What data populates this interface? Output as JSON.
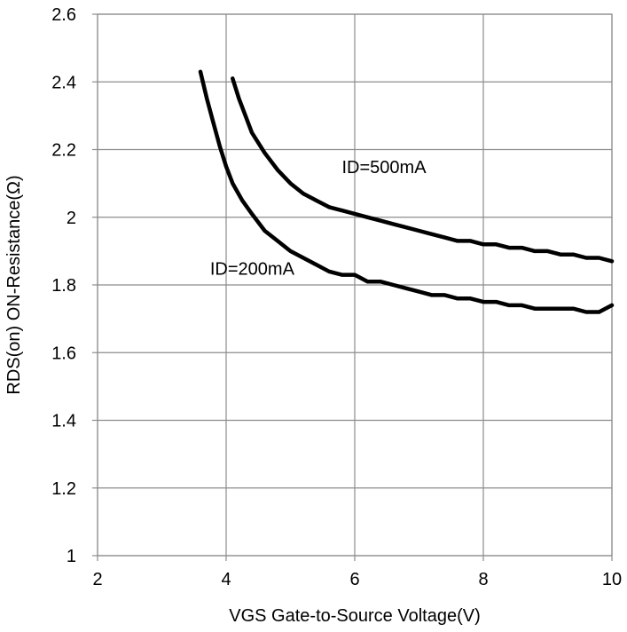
{
  "chart_data": {
    "type": "line",
    "xlabel": "VGS Gate-to-Source Voltage(V)",
    "ylabel": "RDS(on) ON-Resistance(Ω)",
    "xlim": [
      2,
      10
    ],
    "ylim": [
      1,
      2.6
    ],
    "xticks": [
      "2",
      "4",
      "6",
      "8",
      "10"
    ],
    "yticks": [
      "1",
      "1.2",
      "1.4",
      "1.6",
      "1.8",
      "2",
      "2.2",
      "2.4",
      "2.6"
    ],
    "grid": true,
    "series": [
      {
        "name": "ID=200mA",
        "x": [
          3.6,
          3.7,
          3.8,
          3.9,
          4.0,
          4.1,
          4.25,
          4.4,
          4.6,
          4.8,
          5.0,
          5.2,
          5.4,
          5.6,
          5.8,
          6.0,
          6.2,
          6.4,
          6.6,
          6.8,
          7.0,
          7.2,
          7.4,
          7.6,
          7.8,
          8.0,
          8.2,
          8.4,
          8.6,
          8.8,
          9.0,
          9.2,
          9.4,
          9.6,
          9.8,
          10.0
        ],
        "y": [
          2.43,
          2.35,
          2.28,
          2.21,
          2.15,
          2.1,
          2.05,
          2.01,
          1.96,
          1.93,
          1.9,
          1.88,
          1.86,
          1.84,
          1.83,
          1.83,
          1.81,
          1.81,
          1.8,
          1.79,
          1.78,
          1.77,
          1.77,
          1.76,
          1.76,
          1.75,
          1.75,
          1.74,
          1.74,
          1.73,
          1.73,
          1.73,
          1.73,
          1.72,
          1.72,
          1.74
        ]
      },
      {
        "name": "ID=500mA",
        "x": [
          4.1,
          4.2,
          4.3,
          4.4,
          4.6,
          4.8,
          5.0,
          5.2,
          5.4,
          5.6,
          5.8,
          6.0,
          6.2,
          6.4,
          6.6,
          6.8,
          7.0,
          7.2,
          7.4,
          7.6,
          7.8,
          8.0,
          8.2,
          8.4,
          8.6,
          8.8,
          9.0,
          9.2,
          9.4,
          9.6,
          9.8,
          10.0
        ],
        "y": [
          2.41,
          2.35,
          2.3,
          2.25,
          2.19,
          2.14,
          2.1,
          2.07,
          2.05,
          2.03,
          2.02,
          2.01,
          2.0,
          1.99,
          1.98,
          1.97,
          1.96,
          1.95,
          1.94,
          1.93,
          1.93,
          1.92,
          1.92,
          1.91,
          1.91,
          1.9,
          1.9,
          1.89,
          1.89,
          1.88,
          1.88,
          1.87
        ]
      }
    ],
    "annotations": [
      {
        "text": "ID=500mA",
        "x": 5.8,
        "y": 2.13
      },
      {
        "text": "ID=200mA",
        "x": 3.75,
        "y": 1.83
      }
    ]
  }
}
